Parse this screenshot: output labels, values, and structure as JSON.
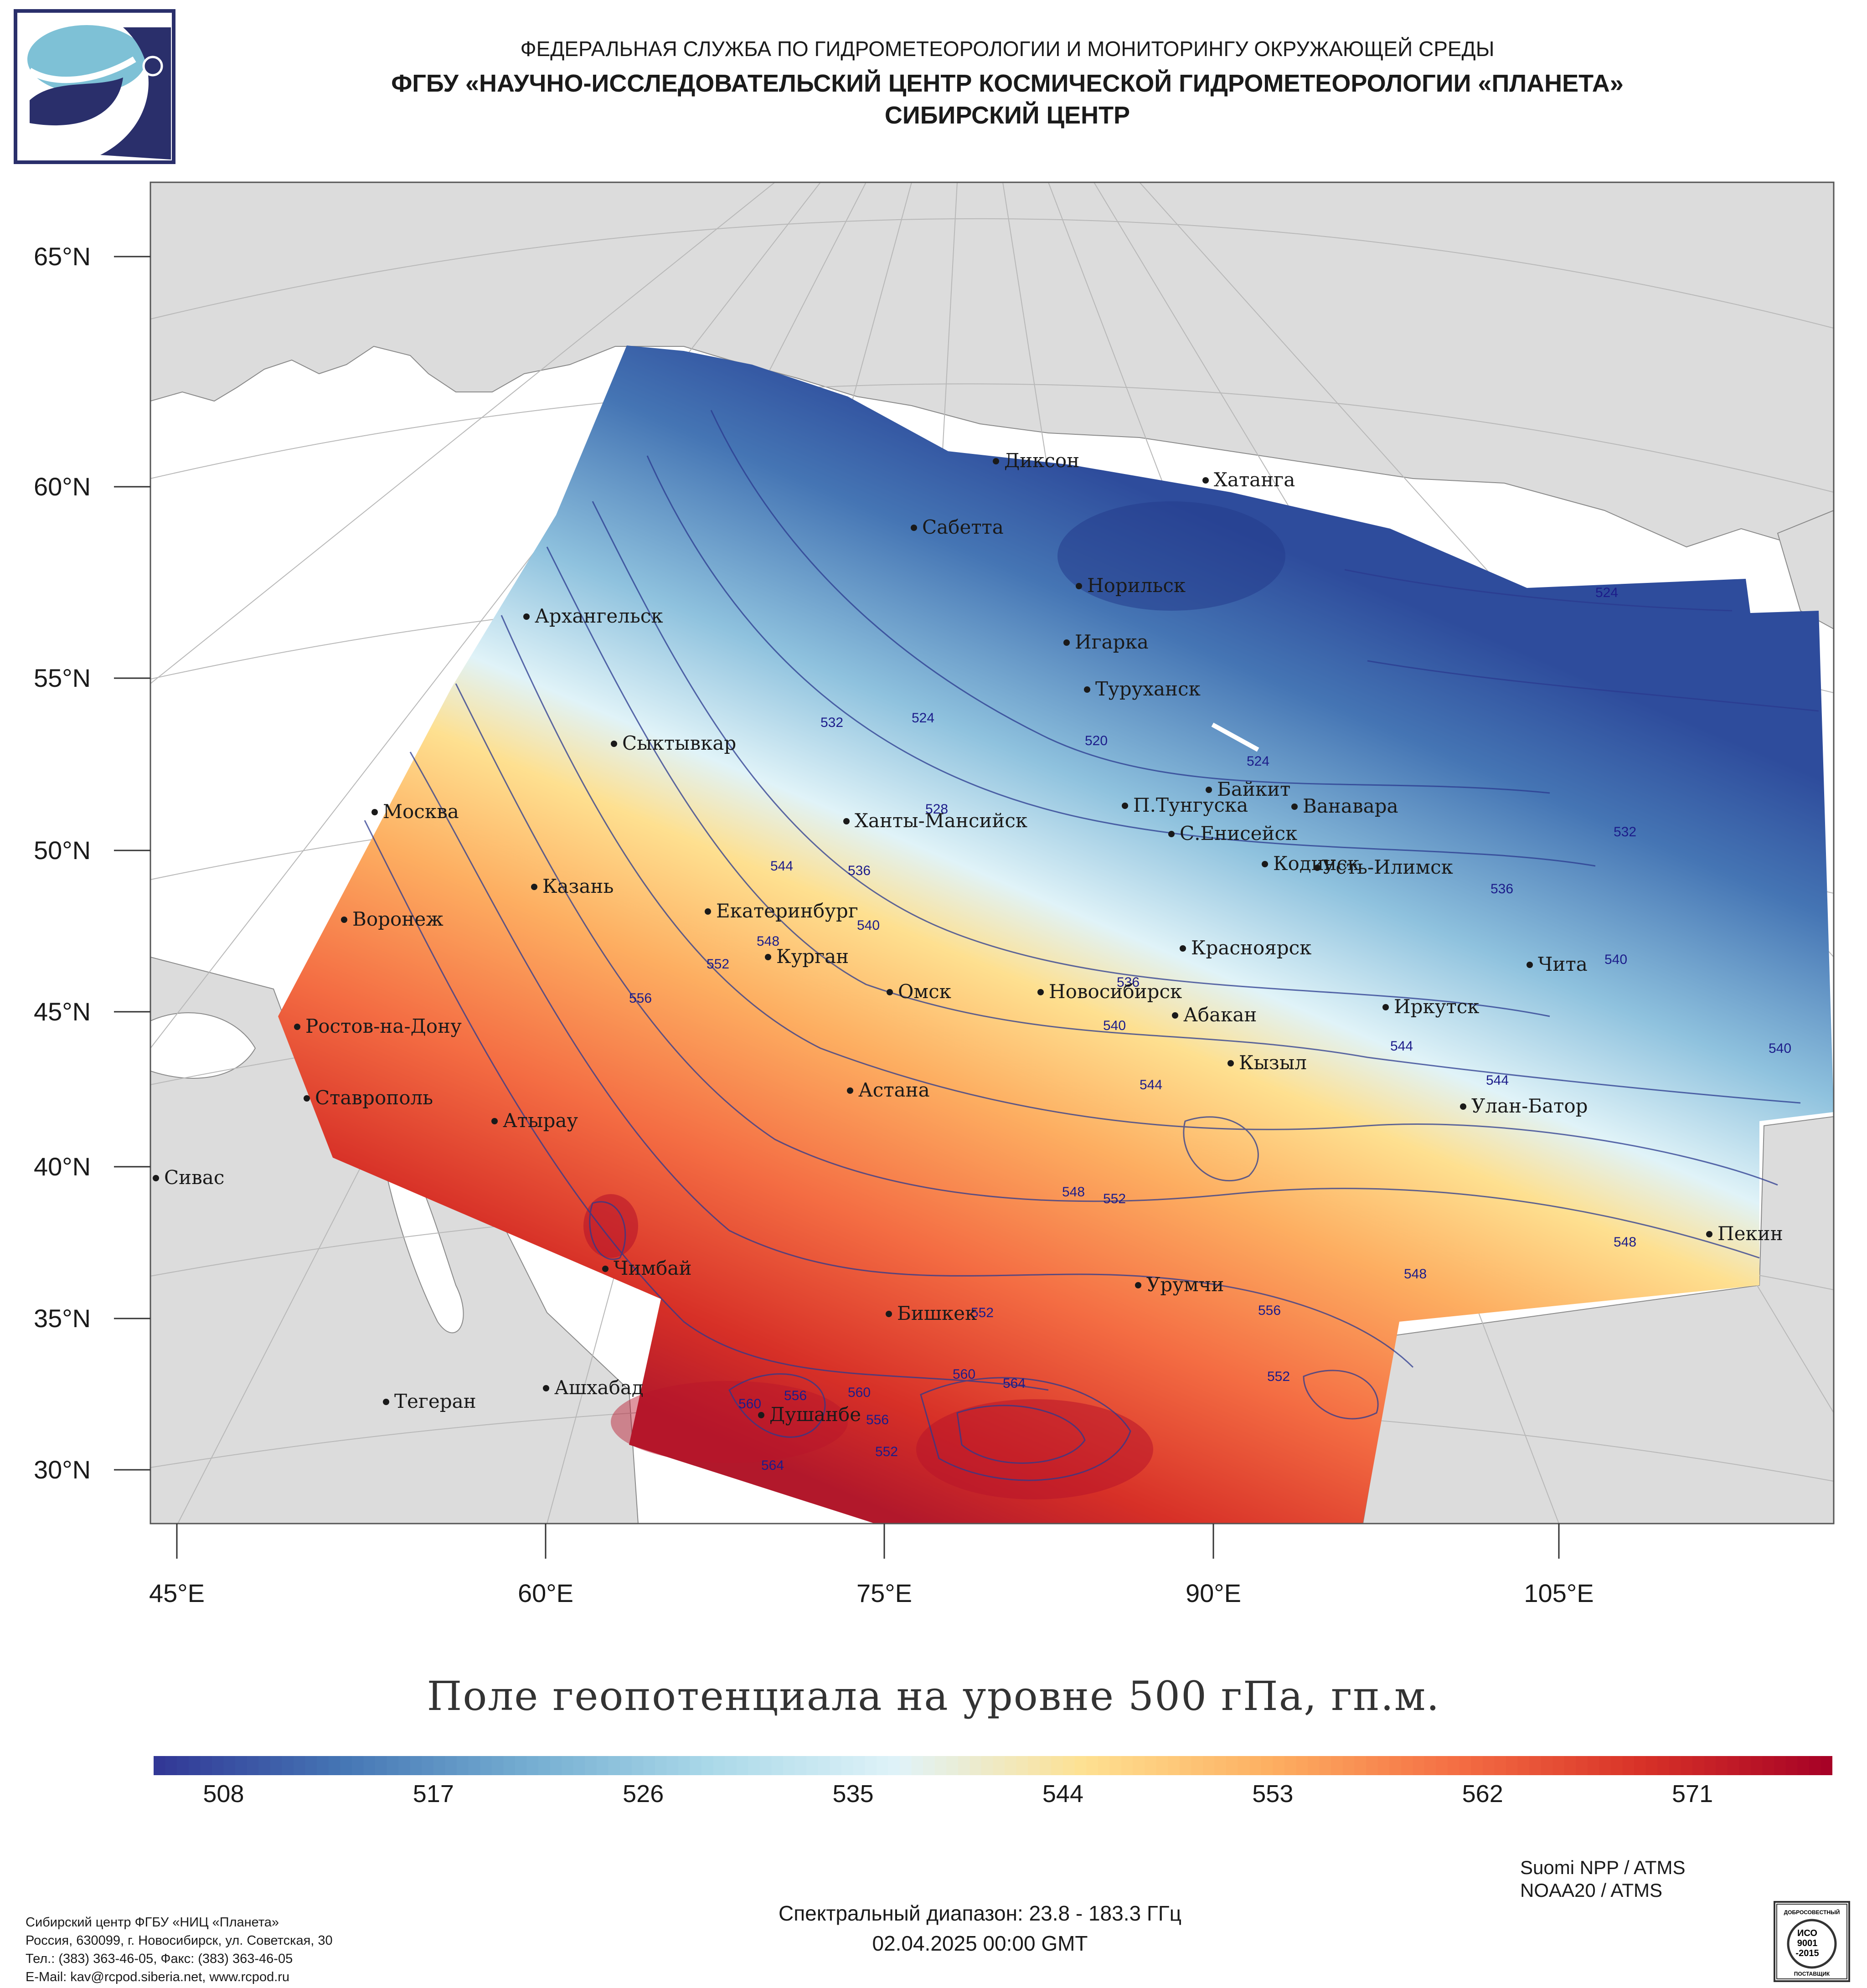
{
  "header": {
    "line1": "ФЕДЕРАЛЬНАЯ СЛУЖБА ПО ГИДРОМЕТЕОРОЛОГИИ И МОНИТОРИНГУ ОКРУЖАЮЩЕЙ СРЕДЫ",
    "line2": "ФГБУ «НАУЧНО-ИССЛЕДОВАТЕЛЬСКИЙ ЦЕНТР КОСМИЧЕСКОЙ ГИДРОМЕТЕОРОЛОГИИ «ПЛАНЕТА»",
    "line3": "СИБИРСКИЙ ЦЕНТР"
  },
  "map": {
    "lat_labels": [
      "65°N",
      "60°N",
      "55°N",
      "50°N",
      "45°N",
      "40°N",
      "35°N",
      "30°N"
    ],
    "lon_labels": [
      "45°E",
      "60°E",
      "75°E",
      "90°E",
      "105°E"
    ],
    "cities": [
      "Диксон",
      "Хатанга",
      "Сабетта",
      "Норильск",
      "Архангельск",
      "Игарка",
      "Туруханск",
      "Сыктывкар",
      "Байкит",
      "Москва",
      "П.Тунгуска",
      "Ванавара",
      "Ханты-Мансийск",
      "С.Енисейск",
      "Кодинск",
      "Усть-Илимск",
      "Казань",
      "Екатеринбург",
      "Воронеж",
      "Красноярск",
      "Курган",
      "Чита",
      "Омск",
      "Новосибирск",
      "Ростов-на-Дону",
      "Иркутск",
      "Абакан",
      "Кызыл",
      "Астана",
      "Ставрополь",
      "Улан-Батор",
      "Атырау",
      "Сивас",
      "Пекин",
      "Чимбай",
      "Урумчи",
      "Бишкек",
      "Ашхабад",
      "Тегеран",
      "Душанбе"
    ],
    "isoline_labels": [
      "524",
      "532",
      "524",
      "520",
      "524",
      "528",
      "532",
      "544",
      "536",
      "540",
      "548",
      "552",
      "556",
      "536",
      "540",
      "536",
      "540",
      "544",
      "544",
      "544",
      "540",
      "548",
      "552",
      "548",
      "548",
      "556",
      "552",
      "552",
      "556",
      "560",
      "560",
      "564",
      "560",
      "564",
      "552",
      "556"
    ]
  },
  "colorbar": {
    "title": "Поле геопотенциала на уровне 500 гПа, гп.м.",
    "ticks": [
      "508",
      "517",
      "526",
      "535",
      "544",
      "553",
      "562",
      "571"
    ],
    "min": 505,
    "max": 577,
    "colors": [
      "#313695",
      "#4575b4",
      "#74add1",
      "#abd9e9",
      "#e0f3f8",
      "#fee090",
      "#fdae61",
      "#f46d43",
      "#d73027",
      "#a50026"
    ]
  },
  "footer": {
    "satellites": [
      "Suomi NPP / ATMS",
      "NOAA20 / ATMS"
    ],
    "org": [
      "Сибирский центр ФГБУ «НИЦ «Планета»",
      "Россия, 630099, г. Новосибирск, ул. Советская, 30",
      "Тел.: (383) 363-46-05, Факс: (383) 363-46-05",
      "E-Mail: kav@rcpod.siberia.net, www.rcpod.ru"
    ],
    "spectral": "Спектральный диапазон: 23.8 - 183.3 ГГц",
    "datetime": "02.04.2025 00:00 GMT"
  },
  "iso_badge": {
    "top_text": "ДОБРОСОВЕСТНЫЙ",
    "line1": "ИСО",
    "line2": "9001",
    "line3": "-2015",
    "bottom_text": "ПОСТАВЩИК"
  }
}
